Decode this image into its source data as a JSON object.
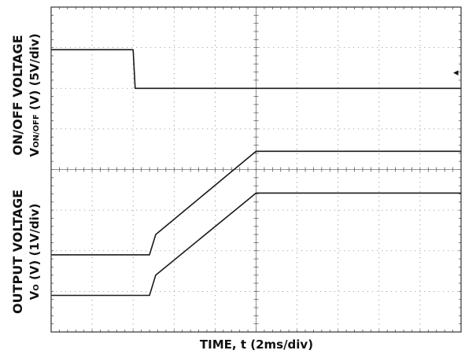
{
  "chart_data": {
    "type": "line",
    "xlabel": "TIME, t (2ms/div)",
    "upper_ylabel_line1": "ON/OFF VOLTAGE",
    "upper_ylabel_line2_prefix": "V",
    "upper_ylabel_line2_sub": "ON/OFF",
    "upper_ylabel_line2_suffix": " (V) (5V/div)",
    "lower_ylabel_line1": "OUTPUT VOLTAGE",
    "lower_ylabel_line2_prefix": "V",
    "lower_ylabel_line2_sub": "O",
    "lower_ylabel_line2_suffix": " (V) (1V/div)",
    "x_divisions": 10,
    "y_divisions": 8,
    "xlim": [
      0,
      10
    ],
    "ylim": [
      0,
      8
    ],
    "grid": true,
    "marker": "◂",
    "series": [
      {
        "points": [
          [
            0,
            6.95
          ],
          [
            2.0,
            6.95
          ],
          [
            2.05,
            6.0
          ],
          [
            10,
            6.0
          ]
        ]
      },
      {
        "points": [
          [
            0,
            1.9
          ],
          [
            2.4,
            1.9
          ],
          [
            2.55,
            2.4
          ],
          [
            5.0,
            4.45
          ],
          [
            10,
            4.45
          ]
        ]
      },
      {
        "points": [
          [
            0,
            0.9
          ],
          [
            2.4,
            0.9
          ],
          [
            2.55,
            1.4
          ],
          [
            5.0,
            3.42
          ],
          [
            10,
            3.42
          ]
        ]
      }
    ]
  }
}
